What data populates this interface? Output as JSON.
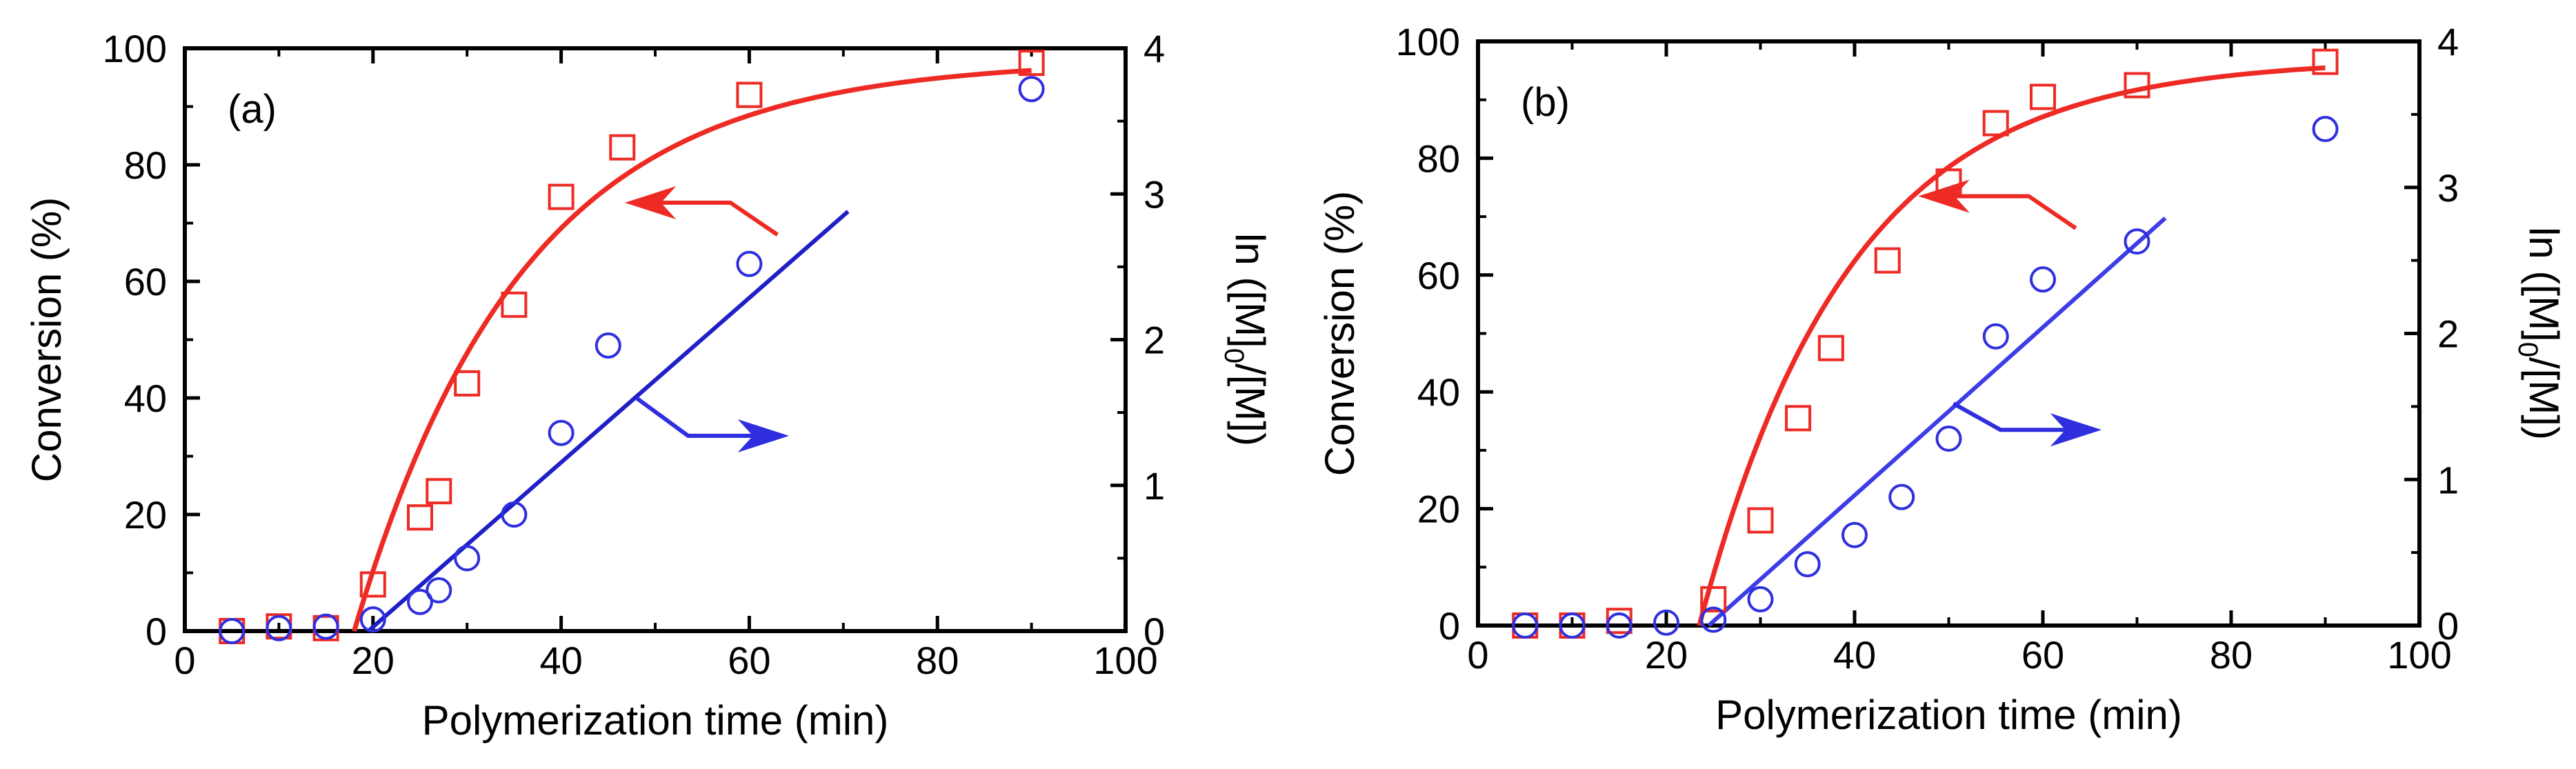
{
  "chart_data": [
    {
      "type": "scatter",
      "panel_label": "(a)",
      "xlabel": "Polymerization time (min)",
      "ylabel": "Conversion (%)",
      "y2label": "ln ([M]0/[M])",
      "y2label_parts": {
        "pre": "ln ([M]",
        "sub": "0",
        "post": "/[M])"
      },
      "xlim": [
        0,
        100
      ],
      "ylim": [
        0,
        100
      ],
      "y2lim": [
        0,
        4
      ],
      "xticks": [
        0,
        20,
        40,
        60,
        80,
        100
      ],
      "yticks": [
        0,
        20,
        40,
        60,
        80,
        100
      ],
      "y2ticks": [
        0,
        1,
        2,
        3,
        4
      ],
      "series": [
        {
          "name": "Conversion (%)",
          "axis": "left",
          "marker": "square",
          "color": "#ee2a24",
          "x": [
            5,
            10,
            15,
            20,
            25,
            27,
            30,
            35,
            40,
            46.5,
            60,
            90
          ],
          "y": [
            0,
            0.8,
            0.5,
            8,
            19.5,
            24,
            42.5,
            56,
            74.5,
            83,
            92,
            97.5
          ]
        },
        {
          "name": "ln ([M]0/[M])",
          "axis": "right",
          "marker": "circle",
          "color": "#2f2fe0",
          "x": [
            5,
            10,
            15,
            20,
            25,
            27,
            30,
            35,
            40,
            45,
            60,
            90
          ],
          "y": [
            0,
            0.02,
            0.03,
            0.08,
            0.2,
            0.28,
            0.5,
            0.8,
            1.36,
            1.96,
            2.52,
            3.72
          ]
        }
      ],
      "fits": [
        {
          "name": "conversion fit",
          "axis": "left",
          "kind": "exponential",
          "t0": 18,
          "ymax": 98,
          "tau": 18,
          "color": "#ee2a24"
        },
        {
          "name": "ln fit",
          "axis": "right",
          "kind": "linear",
          "x": [
            19.5,
            70.5
          ],
          "y": [
            0,
            2.88
          ],
          "color": "#1f1fc8"
        }
      ],
      "annotations": [
        {
          "kind": "arrow-left",
          "color": "#ee2a24",
          "tail": [
            63,
            68
          ],
          "corner": [
            58,
            73.5
          ],
          "head": [
            47,
            73.5
          ]
        },
        {
          "kind": "arrow-right",
          "color": "#2f2fe0",
          "tail": [
            48,
            40
          ],
          "corner": [
            53.5,
            33.5
          ],
          "head": [
            64,
            33.5
          ]
        }
      ]
    },
    {
      "type": "scatter",
      "panel_label": "(b)",
      "xlabel": "Polymerization time (min)",
      "ylabel": "Conversion (%)",
      "y2label": "ln ([M]0/[M])",
      "y2label_parts": {
        "pre": "ln ([M]",
        "sub": "0",
        "post": "/[M])"
      },
      "xlim": [
        0,
        100
      ],
      "ylim": [
        0,
        100
      ],
      "y2lim": [
        0,
        4
      ],
      "xticks": [
        0,
        20,
        40,
        60,
        80,
        100
      ],
      "yticks": [
        0,
        20,
        40,
        60,
        80,
        100
      ],
      "y2ticks": [
        0,
        1,
        2,
        3,
        4
      ],
      "series": [
        {
          "name": "Conversion (%)",
          "axis": "left",
          "marker": "square",
          "color": "#ee2a24",
          "x": [
            5,
            10,
            15,
            25,
            30,
            34,
            37.5,
            43.5,
            50,
            55,
            60,
            70,
            90
          ],
          "y": [
            0,
            0,
            0.8,
            4.5,
            18,
            35.5,
            47.5,
            62.5,
            76,
            86,
            90.5,
            92.5,
            96.5
          ]
        },
        {
          "name": "ln ([M]0/[M])",
          "axis": "right",
          "marker": "circle",
          "color": "#2f2fe0",
          "x": [
            5,
            10,
            15,
            20,
            25,
            30,
            35,
            40,
            45,
            50,
            55,
            60,
            70,
            90
          ],
          "y": [
            0,
            0,
            0,
            0.02,
            0.04,
            0.18,
            0.42,
            0.62,
            0.88,
            1.28,
            1.98,
            2.37,
            2.63,
            3.4
          ]
        }
      ],
      "fits": [
        {
          "name": "conversion fit",
          "axis": "left",
          "kind": "exponential",
          "t0": 23.5,
          "ymax": 97,
          "tau": 16,
          "color": "#ee2a24"
        },
        {
          "name": "ln fit",
          "axis": "right",
          "kind": "linear",
          "x": [
            24.5,
            73
          ],
          "y": [
            0,
            2.79
          ],
          "color": "#3d3de8"
        }
      ],
      "annotations": [
        {
          "kind": "arrow-left",
          "color": "#ee2a24",
          "tail": [
            63.5,
            68
          ],
          "corner": [
            58.5,
            73.5
          ],
          "head": [
            47,
            73.5
          ]
        },
        {
          "kind": "arrow-right",
          "color": "#2f2fe0",
          "tail": [
            50.5,
            38
          ],
          "corner": [
            55.5,
            33.5
          ],
          "head": [
            66,
            33.5
          ]
        }
      ]
    }
  ]
}
